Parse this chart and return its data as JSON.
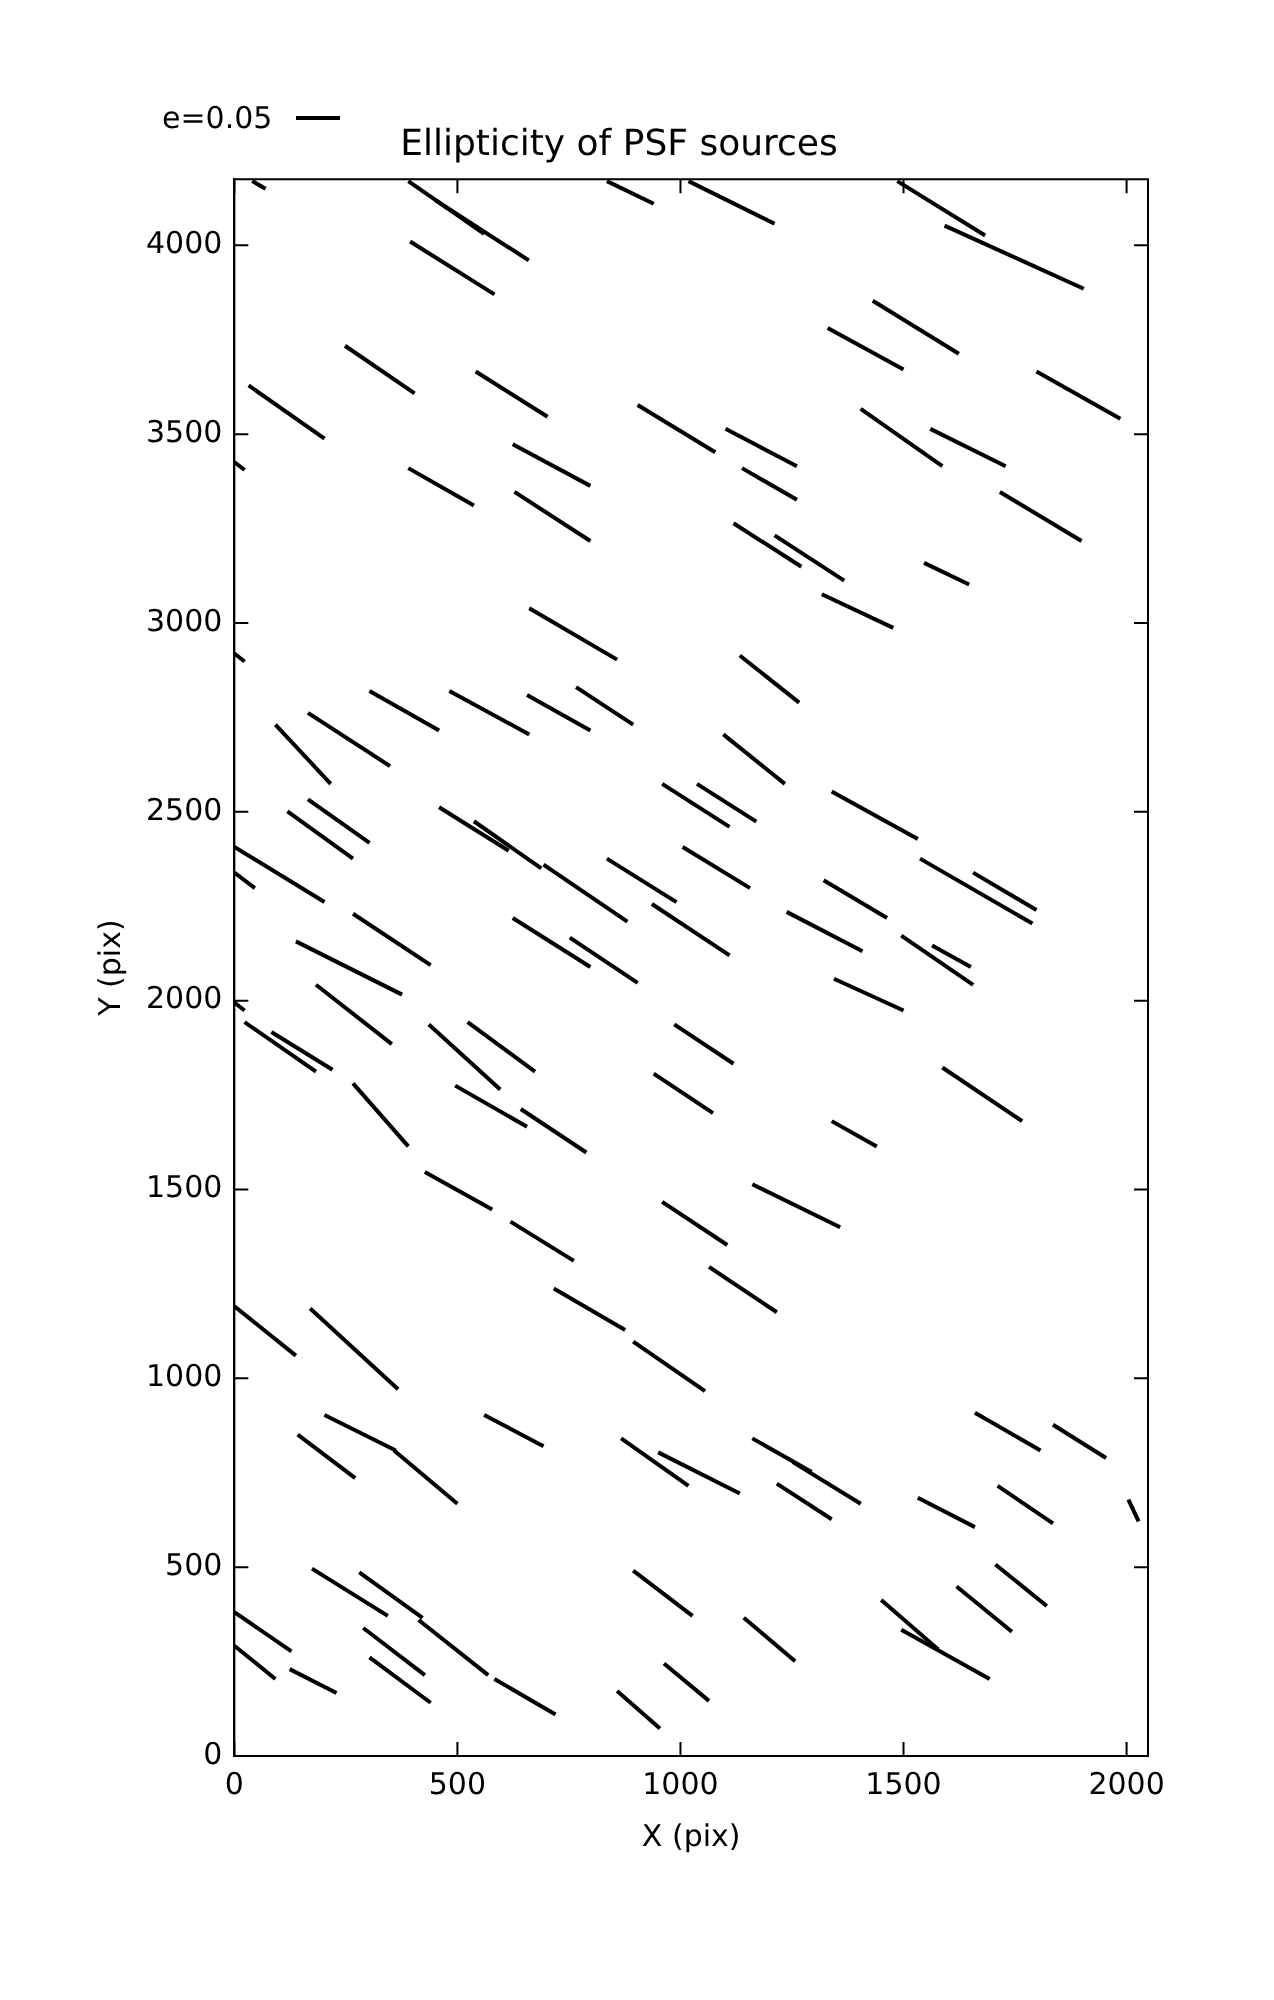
{
  "chart_data": {
    "type": "line",
    "title": "Ellipticity of PSF sources",
    "xlabel": "X (pix)",
    "ylabel": "Y (pix)",
    "color": "#000000",
    "marker": "none",
    "line_style": "solid",
    "annotations": [
      "e=0.05"
    ],
    "xlim": [
      0,
      2048
    ],
    "ylim": [
      0,
      4175
    ],
    "xticks": [
      0,
      500,
      1000,
      1500,
      2000
    ],
    "yticks": [
      0,
      500,
      1000,
      1500,
      2000,
      2500,
      3000,
      3500,
      4000
    ],
    "series": [
      {
        "x": [
          40,
          70
        ],
        "values": [
          4170,
          4150
        ]
      },
      {
        "x": [
          390,
          560
        ],
        "values": [
          4170,
          4030
        ]
      },
      {
        "x": [
          450,
          660
        ],
        "values": [
          4120,
          3960
        ]
      },
      {
        "x": [
          835,
          940
        ],
        "values": [
          4170,
          4110
        ]
      },
      {
        "x": [
          1018,
          1211
        ],
        "values": [
          4170,
          4057
        ]
      },
      {
        "x": [
          1486,
          1683
        ],
        "values": [
          4170,
          4026
        ]
      },
      {
        "x": [
          1592,
          1904
        ],
        "values": [
          4052,
          3885
        ]
      },
      {
        "x": [
          394,
          583
        ],
        "values": [
          4010,
          3870
        ]
      },
      {
        "x": [
          32,
          202
        ],
        "values": [
          3629,
          3488
        ]
      },
      {
        "x": [
          248,
          404
        ],
        "values": [
          3734,
          3608
        ]
      },
      {
        "x": [
          1330,
          1500
        ],
        "values": [
          3781,
          3671
        ]
      },
      {
        "x": [
          1431,
          1624
        ],
        "values": [
          3853,
          3713
        ]
      },
      {
        "x": [
          1798,
          1986
        ],
        "values": [
          3666,
          3541
        ]
      },
      {
        "x": [
          541,
          702
        ],
        "values": [
          3666,
          3546
        ]
      },
      {
        "x": [
          0,
          23
        ],
        "values": [
          3426,
          3405
        ]
      },
      {
        "x": [
          904,
          1078
        ],
        "values": [
          3577,
          3452
        ]
      },
      {
        "x": [
          1101,
          1261
        ],
        "values": [
          3514,
          3415
        ]
      },
      {
        "x": [
          390,
          537
        ],
        "values": [
          3410,
          3311
        ]
      },
      {
        "x": [
          624,
          798
        ],
        "values": [
          3473,
          3363
        ]
      },
      {
        "x": [
          1138,
          1261
        ],
        "values": [
          3410,
          3326
        ]
      },
      {
        "x": [
          1404,
          1587
        ],
        "values": [
          3567,
          3415
        ]
      },
      {
        "x": [
          1560,
          1729
        ],
        "values": [
          3514,
          3415
        ]
      },
      {
        "x": [
          1716,
          1899
        ],
        "values": [
          3347,
          3217
        ]
      },
      {
        "x": [
          628,
          798
        ],
        "values": [
          3347,
          3217
        ]
      },
      {
        "x": [
          1119,
          1271
        ],
        "values": [
          3264,
          3149
        ]
      },
      {
        "x": [
          1211,
          1367
        ],
        "values": [
          3232,
          3112
        ]
      },
      {
        "x": [
          1317,
          1477
        ],
        "values": [
          3076,
          2987
        ]
      },
      {
        "x": [
          1546,
          1647
        ],
        "values": [
          3159,
          3102
        ]
      },
      {
        "x": [
          661,
          858
        ],
        "values": [
          3039,
          2903
        ]
      },
      {
        "x": [
          0,
          23
        ],
        "values": [
          2919,
          2898
        ]
      },
      {
        "x": [
          1133,
          1266
        ],
        "values": [
          2914,
          2789
        ]
      },
      {
        "x": [
          303,
          459
        ],
        "values": [
          2820,
          2715
        ]
      },
      {
        "x": [
          482,
          661
        ],
        "values": [
          2820,
          2705
        ]
      },
      {
        "x": [
          656,
          798
        ],
        "values": [
          2809,
          2715
        ]
      },
      {
        "x": [
          766,
          894
        ],
        "values": [
          2830,
          2731
        ]
      },
      {
        "x": [
          92,
          216
        ],
        "values": [
          2731,
          2574
        ]
      },
      {
        "x": [
          165,
          349
        ],
        "values": [
          2762,
          2621
        ]
      },
      {
        "x": [
          1096,
          1234
        ],
        "values": [
          2705,
          2574
        ]
      },
      {
        "x": [
          959,
          1110
        ],
        "values": [
          2574,
          2460
        ]
      },
      {
        "x": [
          1037,
          1170
        ],
        "values": [
          2574,
          2474
        ]
      },
      {
        "x": [
          1339,
          1532
        ],
        "values": [
          2554,
          2428
        ]
      },
      {
        "x": [
          119,
          266
        ],
        "values": [
          2501,
          2376
        ]
      },
      {
        "x": [
          165,
          303
        ],
        "values": [
          2533,
          2418
        ]
      },
      {
        "x": [
          459,
          615
        ],
        "values": [
          2512,
          2397
        ]
      },
      {
        "x": [
          537,
          688
        ],
        "values": [
          2475,
          2350
        ]
      },
      {
        "x": [
          0,
          202
        ],
        "values": [
          2407,
          2261
        ]
      },
      {
        "x": [
          0,
          46
        ],
        "values": [
          2339,
          2298
        ]
      },
      {
        "x": [
          693,
          881
        ],
        "values": [
          2360,
          2209
        ]
      },
      {
        "x": [
          835,
          991
        ],
        "values": [
          2376,
          2261
        ]
      },
      {
        "x": [
          1005,
          1156
        ],
        "values": [
          2407,
          2298
        ]
      },
      {
        "x": [
          1238,
          1408
        ],
        "values": [
          2235,
          2131
        ]
      },
      {
        "x": [
          1321,
          1463
        ],
        "values": [
          2319,
          2219
        ]
      },
      {
        "x": [
          1537,
          1789
        ],
        "values": [
          2376,
          2204
        ]
      },
      {
        "x": [
          1656,
          1798
        ],
        "values": [
          2339,
          2240
        ]
      },
      {
        "x": [
          266,
          440
        ],
        "values": [
          2230,
          2094
        ]
      },
      {
        "x": [
          138,
          376
        ],
        "values": [
          2157,
          2016
        ]
      },
      {
        "x": [
          624,
          798
        ],
        "values": [
          2219,
          2089
        ]
      },
      {
        "x": [
          752,
          904
        ],
        "values": [
          2167,
          2047
        ]
      },
      {
        "x": [
          936,
          1110
        ],
        "values": [
          2256,
          2120
        ]
      },
      {
        "x": [
          1495,
          1656
        ],
        "values": [
          2172,
          2042
        ]
      },
      {
        "x": [
          1564,
          1651
        ],
        "values": [
          2146,
          2089
        ]
      },
      {
        "x": [
          1344,
          1500
        ],
        "values": [
          2058,
          1974
        ]
      },
      {
        "x": [
          23,
          183
        ],
        "values": [
          1943,
          1812
        ]
      },
      {
        "x": [
          0,
          23
        ],
        "values": [
          1995,
          1974
        ]
      },
      {
        "x": [
          183,
          353
        ],
        "values": [
          2042,
          1885
        ]
      },
      {
        "x": [
          436,
          596
        ],
        "values": [
          1937,
          1765
        ]
      },
      {
        "x": [
          523,
          674
        ],
        "values": [
          1943,
          1812
        ]
      },
      {
        "x": [
          986,
          1119
        ],
        "values": [
          1937,
          1833
        ]
      },
      {
        "x": [
          495,
          656
        ],
        "values": [
          1775,
          1666
        ]
      },
      {
        "x": [
          642,
          789
        ],
        "values": [
          1713,
          1598
        ]
      },
      {
        "x": [
          940,
          1073
        ],
        "values": [
          1807,
          1702
        ]
      },
      {
        "x": [
          83,
          220
        ],
        "values": [
          1917,
          1817
        ]
      },
      {
        "x": [
          266,
          390
        ],
        "values": [
          1781,
          1614
        ]
      },
      {
        "x": [
          1339,
          1440
        ],
        "values": [
          1681,
          1614
        ]
      },
      {
        "x": [
          1587,
          1766
        ],
        "values": [
          1823,
          1681
        ]
      },
      {
        "x": [
          427,
          578
        ],
        "values": [
          1546,
          1447
        ]
      },
      {
        "x": [
          1161,
          1358
        ],
        "values": [
          1514,
          1400
        ]
      },
      {
        "x": [
          619,
          761
        ],
        "values": [
          1415,
          1311
        ]
      },
      {
        "x": [
          716,
          876
        ],
        "values": [
          1238,
          1128
        ]
      },
      {
        "x": [
          959,
          1105
        ],
        "values": [
          1467,
          1353
        ]
      },
      {
        "x": [
          1064,
          1216
        ],
        "values": [
          1295,
          1175
        ]
      },
      {
        "x": [
          0,
          138
        ],
        "values": [
          1191,
          1060
        ]
      },
      {
        "x": [
          170,
          367
        ],
        "values": [
          1185,
          971
        ]
      },
      {
        "x": [
          894,
          1055
        ],
        "values": [
          1097,
          966
        ]
      },
      {
        "x": [
          560,
          693
        ],
        "values": [
          903,
          820
        ]
      },
      {
        "x": [
          202,
          362
        ],
        "values": [
          903,
          809
        ]
      },
      {
        "x": [
          142,
          271
        ],
        "values": [
          851,
          736
        ]
      },
      {
        "x": [
          358,
          500
        ],
        "values": [
          809,
          668
        ]
      },
      {
        "x": [
          867,
          1018
        ],
        "values": [
          841,
          715
        ]
      },
      {
        "x": [
          950,
          1133
        ],
        "values": [
          804,
          695
        ]
      },
      {
        "x": [
          1161,
          1294
        ],
        "values": [
          841,
          752
        ]
      },
      {
        "x": [
          1216,
          1339
        ],
        "values": [
          721,
          627
        ]
      },
      {
        "x": [
          1252,
          1404
        ],
        "values": [
          778,
          668
        ]
      },
      {
        "x": [
          1532,
          1660
        ],
        "values": [
          684,
          606
        ]
      },
      {
        "x": [
          1660,
          1807
        ],
        "values": [
          909,
          809
        ]
      },
      {
        "x": [
          1711,
          1835
        ],
        "values": [
          715,
          616
        ]
      },
      {
        "x": [
          1835,
          1954
        ],
        "values": [
          877,
          789
        ]
      },
      {
        "x": [
          2004,
          2027
        ],
        "values": [
          679,
          621
        ]
      },
      {
        "x": [
          174,
          344
        ],
        "values": [
          496,
          371
        ]
      },
      {
        "x": [
          280,
          422
        ],
        "values": [
          486,
          366
        ]
      },
      {
        "x": [
          413,
          569
        ],
        "values": [
          360,
          214
        ]
      },
      {
        "x": [
          0,
          128
        ],
        "values": [
          381,
          277
        ]
      },
      {
        "x": [
          0,
          92
        ],
        "values": [
          292,
          204
        ]
      },
      {
        "x": [
          289,
          427
        ],
        "values": [
          339,
          214
        ]
      },
      {
        "x": [
          124,
          229
        ],
        "values": [
          230,
          167
        ]
      },
      {
        "x": [
          303,
          440
        ],
        "values": [
          261,
          141
        ]
      },
      {
        "x": [
          583,
          720
        ],
        "values": [
          204,
          110
        ]
      },
      {
        "x": [
          894,
          1027
        ],
        "values": [
          491,
          371
        ]
      },
      {
        "x": [
          963,
          1064
        ],
        "values": [
          245,
          146
        ]
      },
      {
        "x": [
          1142,
          1257
        ],
        "values": [
          366,
          251
        ]
      },
      {
        "x": [
          1450,
          1578
        ],
        "values": [
          413,
          282
        ]
      },
      {
        "x": [
          1495,
          1693
        ],
        "values": [
          334,
          204
        ]
      },
      {
        "x": [
          1619,
          1743
        ],
        "values": [
          449,
          329
        ]
      },
      {
        "x": [
          1706,
          1821
        ],
        "values": [
          507,
          397
        ]
      },
      {
        "x": [
          858,
          954
        ],
        "values": [
          172,
          73
        ]
      }
    ]
  }
}
